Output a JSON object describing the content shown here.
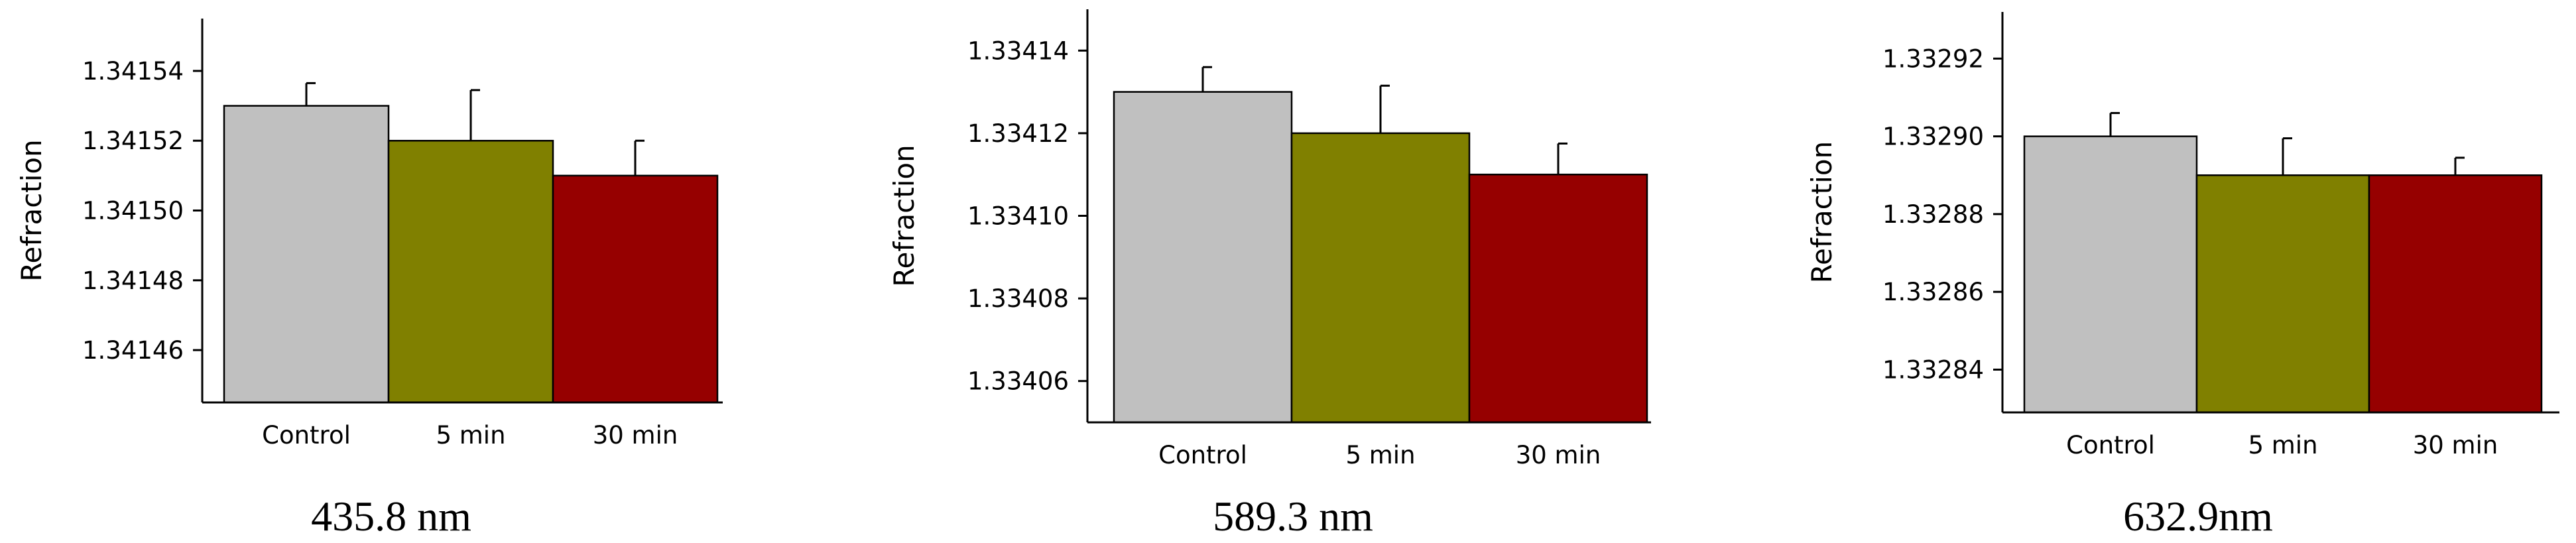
{
  "chart_data": [
    {
      "type": "bar",
      "caption": "435.8 nm",
      "ylabel": "Refraction",
      "categories": [
        "Control",
        "5 min",
        "30 min"
      ],
      "values": [
        1.34153,
        1.34152,
        1.34151
      ],
      "errors": [
        6.5e-06,
        1.45e-05,
        1e-05
      ],
      "ylim": [
        1.341445,
        1.341555
      ],
      "yticks": [
        1.34146,
        1.34148,
        1.3415,
        1.34152,
        1.34154
      ],
      "ytick_labels": [
        "1.34146",
        "1.34148",
        "1.34150",
        "1.34152",
        "1.34154"
      ],
      "colors": [
        "#c0c0c0",
        "#808000",
        "#960000"
      ],
      "grid": false
    },
    {
      "type": "bar",
      "caption": "589.3 nm",
      "ylabel": "Refraction",
      "categories": [
        "Control",
        "5 min",
        "30 min"
      ],
      "values": [
        1.33413,
        1.33412,
        1.33411
      ],
      "errors": [
        6e-06,
        1.15e-05,
        7.5e-06
      ],
      "ylim": [
        1.33405,
        1.33415
      ],
      "yticks": [
        1.33406,
        1.33408,
        1.3341,
        1.33412,
        1.33414
      ],
      "ytick_labels": [
        "1.33406",
        "1.33408",
        "1.33410",
        "1.33412",
        "1.33414"
      ],
      "colors": [
        "#c0c0c0",
        "#808000",
        "#960000"
      ],
      "grid": false
    },
    {
      "type": "bar",
      "caption": "632.9nm",
      "ylabel": "Refraction",
      "categories": [
        "Control",
        "5 min",
        "30 min"
      ],
      "values": [
        1.3329,
        1.33289,
        1.33289
      ],
      "errors": [
        6e-06,
        9.5e-06,
        4.5e-06
      ],
      "ylim": [
        1.332829,
        1.332932
      ],
      "yticks": [
        1.33284,
        1.33286,
        1.33288,
        1.3329,
        1.33292
      ],
      "ytick_labels": [
        "1.33284",
        "1.33286",
        "1.33288",
        "1.33290",
        "1.33292"
      ],
      "colors": [
        "#c0c0c0",
        "#808000",
        "#960000"
      ],
      "grid": false
    }
  ]
}
